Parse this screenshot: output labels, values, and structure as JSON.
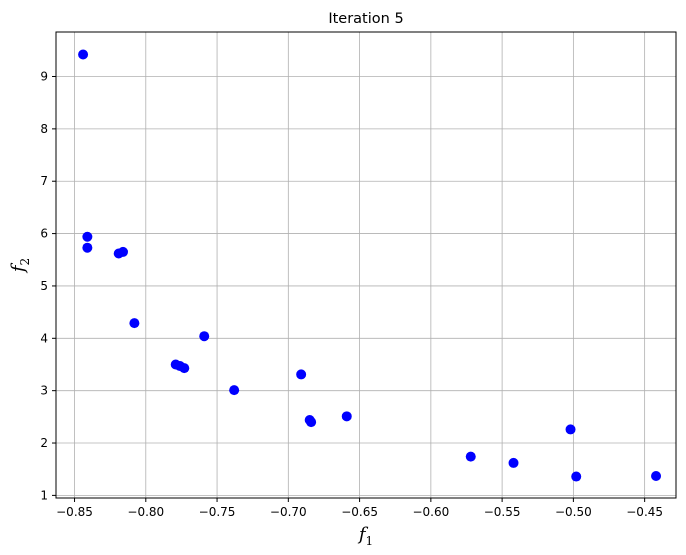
{
  "chart_data": {
    "type": "scatter",
    "title": "Iteration 5",
    "xlabel": {
      "base": "f",
      "sub": "1"
    },
    "ylabel": {
      "base": "f",
      "sub": "2"
    },
    "xlim": [
      -0.863,
      -0.428
    ],
    "ylim": [
      0.95,
      9.85
    ],
    "xticks": [
      -0.85,
      -0.8,
      -0.75,
      -0.7,
      -0.65,
      -0.6,
      -0.55,
      -0.5,
      -0.45
    ],
    "xtick_labels": [
      "−0.85",
      "−0.80",
      "−0.75",
      "−0.70",
      "−0.65",
      "−0.60",
      "−0.55",
      "−0.50",
      "−0.45"
    ],
    "yticks": [
      1,
      2,
      3,
      4,
      5,
      6,
      7,
      8,
      9
    ],
    "ytick_labels": [
      "1",
      "2",
      "3",
      "4",
      "5",
      "6",
      "7",
      "8",
      "9"
    ],
    "grid": true,
    "marker_color": "#0000ff",
    "points": [
      {
        "x": -0.844,
        "y": 9.42
      },
      {
        "x": -0.841,
        "y": 5.94
      },
      {
        "x": -0.841,
        "y": 5.73
      },
      {
        "x": -0.819,
        "y": 5.62
      },
      {
        "x": -0.816,
        "y": 5.65
      },
      {
        "x": -0.808,
        "y": 4.29
      },
      {
        "x": -0.779,
        "y": 3.5
      },
      {
        "x": -0.776,
        "y": 3.47
      },
      {
        "x": -0.773,
        "y": 3.43
      },
      {
        "x": -0.759,
        "y": 4.04
      },
      {
        "x": -0.738,
        "y": 3.01
      },
      {
        "x": -0.691,
        "y": 3.31
      },
      {
        "x": -0.685,
        "y": 2.44
      },
      {
        "x": -0.684,
        "y": 2.4
      },
      {
        "x": -0.659,
        "y": 2.51
      },
      {
        "x": -0.572,
        "y": 1.74
      },
      {
        "x": -0.542,
        "y": 1.62
      },
      {
        "x": -0.502,
        "y": 2.26
      },
      {
        "x": -0.498,
        "y": 1.36
      },
      {
        "x": -0.442,
        "y": 1.37
      }
    ]
  }
}
